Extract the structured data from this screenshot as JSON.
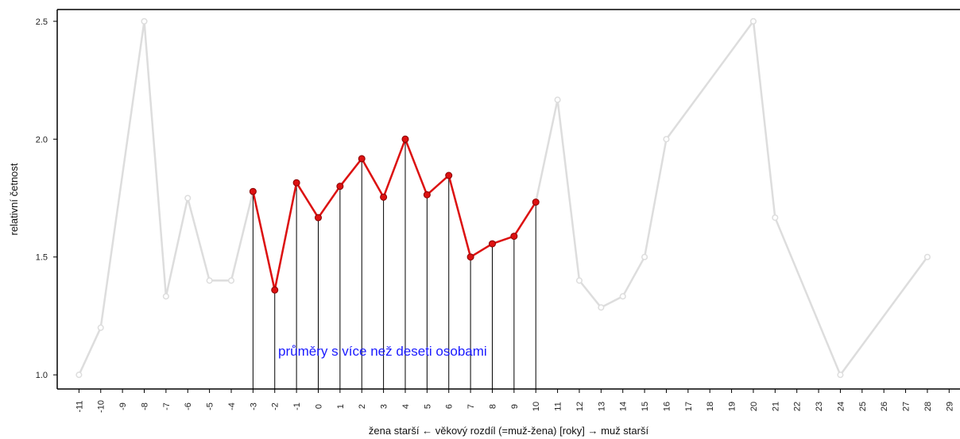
{
  "chart_data": {
    "type": "line",
    "xlabel": "žena starší ← věkový rozdíl (=muž-žena) [roky] → muž starší",
    "ylabel": "relativní četnost",
    "xlim": [
      -12,
      29.5
    ],
    "ylim": [
      0.94,
      2.55
    ],
    "x_ticks": [
      -11,
      -10,
      -9,
      -8,
      -7,
      -6,
      -5,
      -4,
      -3,
      -2,
      -1,
      0,
      1,
      2,
      3,
      4,
      5,
      6,
      7,
      8,
      9,
      10,
      11,
      12,
      13,
      14,
      15,
      16,
      17,
      18,
      19,
      20,
      21,
      22,
      23,
      24,
      25,
      26,
      27,
      28,
      29
    ],
    "y_ticks": [
      1.0,
      1.5,
      2.0,
      2.5
    ],
    "y_tick_labels": [
      "1.0",
      "1.5",
      "2.0",
      "2.5"
    ],
    "annotation": "průměry s více než deseti osobami",
    "annotation_color": "#1a1aff",
    "series": [
      {
        "color": "#dddddd",
        "x": [
          -11,
          -10,
          -8,
          -7,
          -6,
          -5,
          -4,
          -3,
          -2,
          -1,
          0,
          1,
          2,
          3,
          4,
          5,
          6,
          7,
          8,
          9,
          10,
          11,
          12,
          13,
          14,
          15,
          16,
          20,
          21,
          24,
          28
        ],
        "values": [
          1.0,
          1.2,
          2.5,
          1.333,
          1.75,
          1.4,
          1.4,
          1.778,
          1.36,
          1.815,
          1.667,
          1.8,
          1.917,
          1.754,
          2.0,
          1.764,
          1.846,
          1.5,
          1.556,
          1.588,
          1.733,
          2.167,
          1.4,
          1.286,
          1.333,
          1.5,
          2.0,
          2.5,
          1.667,
          1.0,
          1.5
        ]
      },
      {
        "color": "#dd1111",
        "x": [
          -3,
          -2,
          -1,
          0,
          1,
          2,
          3,
          4,
          5,
          6,
          7,
          8,
          9,
          10
        ],
        "values": [
          1.778,
          1.36,
          1.815,
          1.667,
          1.8,
          1.917,
          1.754,
          2.0,
          1.764,
          1.846,
          1.5,
          1.556,
          1.588,
          1.733
        ]
      }
    ]
  }
}
